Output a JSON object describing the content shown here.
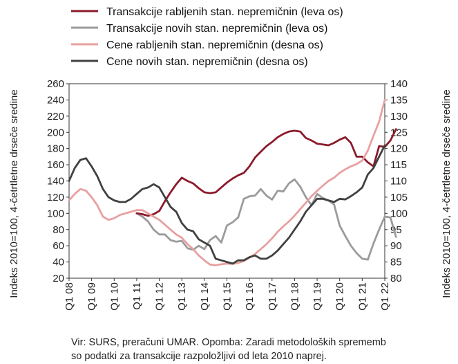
{
  "chart_data": {
    "type": "line",
    "legend": {
      "placement": "top"
    },
    "left_axis": {
      "label": "Indeks 2010=100, 4-četrtletne drseče sredine",
      "ylim": [
        20,
        260
      ],
      "ticks": [
        20,
        40,
        60,
        80,
        100,
        120,
        140,
        160,
        180,
        200,
        220,
        240,
        260
      ]
    },
    "right_axis": {
      "label": "Indeks 2010=100, 4-četrtletne drseče sredine",
      "ylim": [
        80,
        140
      ],
      "ticks": [
        80,
        85,
        90,
        95,
        100,
        105,
        110,
        115,
        120,
        125,
        130,
        135,
        140
      ]
    },
    "x_ticks": [
      "Q1 08",
      "Q1 09",
      "Q1 10",
      "Q1 11",
      "Q1 12",
      "Q1 13",
      "Q1 14",
      "Q1 15",
      "Q1 16",
      "Q1 17",
      "Q1 18",
      "Q1 19",
      "Q1 20",
      "Q1 21",
      "Q1 22"
    ],
    "x_range": [
      0,
      56
    ],
    "series": [
      {
        "name": "Transakcije rabljenih stan. nepremičnin (leva os)",
        "axis": "left",
        "color": "#8b1a2b",
        "x_start": 12,
        "values": [
          100,
          99,
          97,
          99,
          103,
          115,
          126,
          136,
          144,
          140,
          137,
          131,
          126,
          125,
          126,
          132,
          138,
          143,
          147,
          150,
          158,
          169,
          176,
          183,
          188,
          194,
          198,
          201,
          202,
          201,
          193,
          190,
          186,
          185,
          184,
          187,
          191,
          194,
          187,
          170,
          170,
          163,
          158,
          183,
          182,
          190,
          204
        ]
      },
      {
        "name": "Transakcije novih stan. nepremičnin (leva os)",
        "axis": "left",
        "color": "#9b9b9b",
        "x_start": 12,
        "values": [
          100,
          96,
          90,
          80,
          74,
          74,
          67,
          65,
          66,
          57,
          55,
          60,
          56,
          67,
          72,
          64,
          85,
          89,
          95,
          118,
          121,
          122,
          130,
          122,
          117,
          128,
          127,
          137,
          142,
          133,
          120,
          110,
          124,
          119,
          116,
          111,
          85,
          72,
          60,
          51,
          44,
          43,
          63,
          80,
          96,
          95,
          71
        ]
      },
      {
        "name": "Cene rabljenih stan. nepremičnin (desna os)",
        "axis": "right",
        "color": "#e8a0a0",
        "x_start": 0,
        "values": [
          104,
          106,
          107.5,
          107,
          105,
          102.5,
          99,
          98,
          98.5,
          99.5,
          100,
          100.5,
          101,
          101,
          100,
          99,
          98,
          96.5,
          95,
          93.5,
          92.5,
          90.5,
          89,
          87,
          85.5,
          84.2,
          84,
          84.3,
          84.5,
          84.4,
          84.7,
          85.3,
          86.3,
          87.5,
          89,
          90.5,
          92.3,
          94.3,
          96,
          97.5,
          99.3,
          101.3,
          103.3,
          105.3,
          107,
          108.5,
          110,
          111,
          112.5,
          113.6,
          114.5,
          115.2,
          116.3,
          119.4,
          124,
          128.3,
          135
        ]
      },
      {
        "name": "Cene novih stan. nepremičnin (desna os)",
        "axis": "right",
        "color": "#404040",
        "x_start": 0,
        "values": [
          110,
          114,
          116.5,
          117,
          114.5,
          111.5,
          107.5,
          105,
          104,
          103.5,
          103.5,
          104.5,
          106,
          107.5,
          108,
          109,
          108,
          105,
          102,
          100.5,
          97,
          95,
          94.5,
          92,
          91,
          90,
          86,
          85.5,
          85,
          84.5,
          85.5,
          85.5,
          86.5,
          87,
          86,
          86,
          87,
          88.5,
          90.5,
          92.5,
          95,
          97.5,
          100.5,
          102.5,
          104.5,
          104.5,
          104,
          103.5,
          104.5,
          104.3,
          105.3,
          106.5,
          108,
          112,
          114,
          117.5,
          121
        ]
      }
    ],
    "note": [
      "Vir: SURS, preračuni UMAR. Opomba: Zaradi metodoloških sprememb",
      "so podatki za transakcije razpoložljivi od leta 2010 naprej."
    ]
  }
}
